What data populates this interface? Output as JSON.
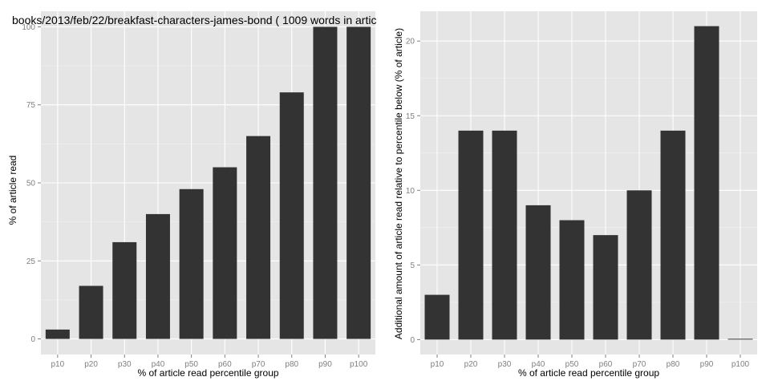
{
  "chart_data": [
    {
      "type": "bar",
      "title": "books/2013/feb/22/breakfast-characters-james-bond ( 1009 words in artic",
      "xlabel": "% of article read percentile group",
      "ylabel": "% of article read",
      "categories": [
        "p10",
        "p20",
        "p30",
        "p40",
        "p50",
        "p60",
        "p70",
        "p80",
        "p90",
        "p100"
      ],
      "values": [
        3,
        17,
        31,
        40,
        48,
        55,
        65,
        79,
        100,
        100
      ],
      "ylim": [
        -5,
        105
      ],
      "yticks": [
        0,
        25,
        50,
        75,
        100
      ],
      "grid": true,
      "bar_color": "#333333",
      "panel_color": "#e5e5e5"
    },
    {
      "type": "bar",
      "title": "",
      "xlabel": "% of article read percentile group",
      "ylabel": "Additional amount of article read relative to percentile below (% of article)",
      "categories": [
        "p10",
        "p20",
        "p30",
        "p40",
        "p50",
        "p60",
        "p70",
        "p80",
        "p90",
        "p100"
      ],
      "values": [
        3,
        14,
        14,
        9,
        8,
        7,
        10,
        14,
        21,
        0
      ],
      "ylim": [
        -1,
        22
      ],
      "yticks": [
        0,
        5,
        10,
        15,
        20
      ],
      "grid": true,
      "bar_color": "#333333",
      "panel_color": "#e5e5e5"
    }
  ]
}
